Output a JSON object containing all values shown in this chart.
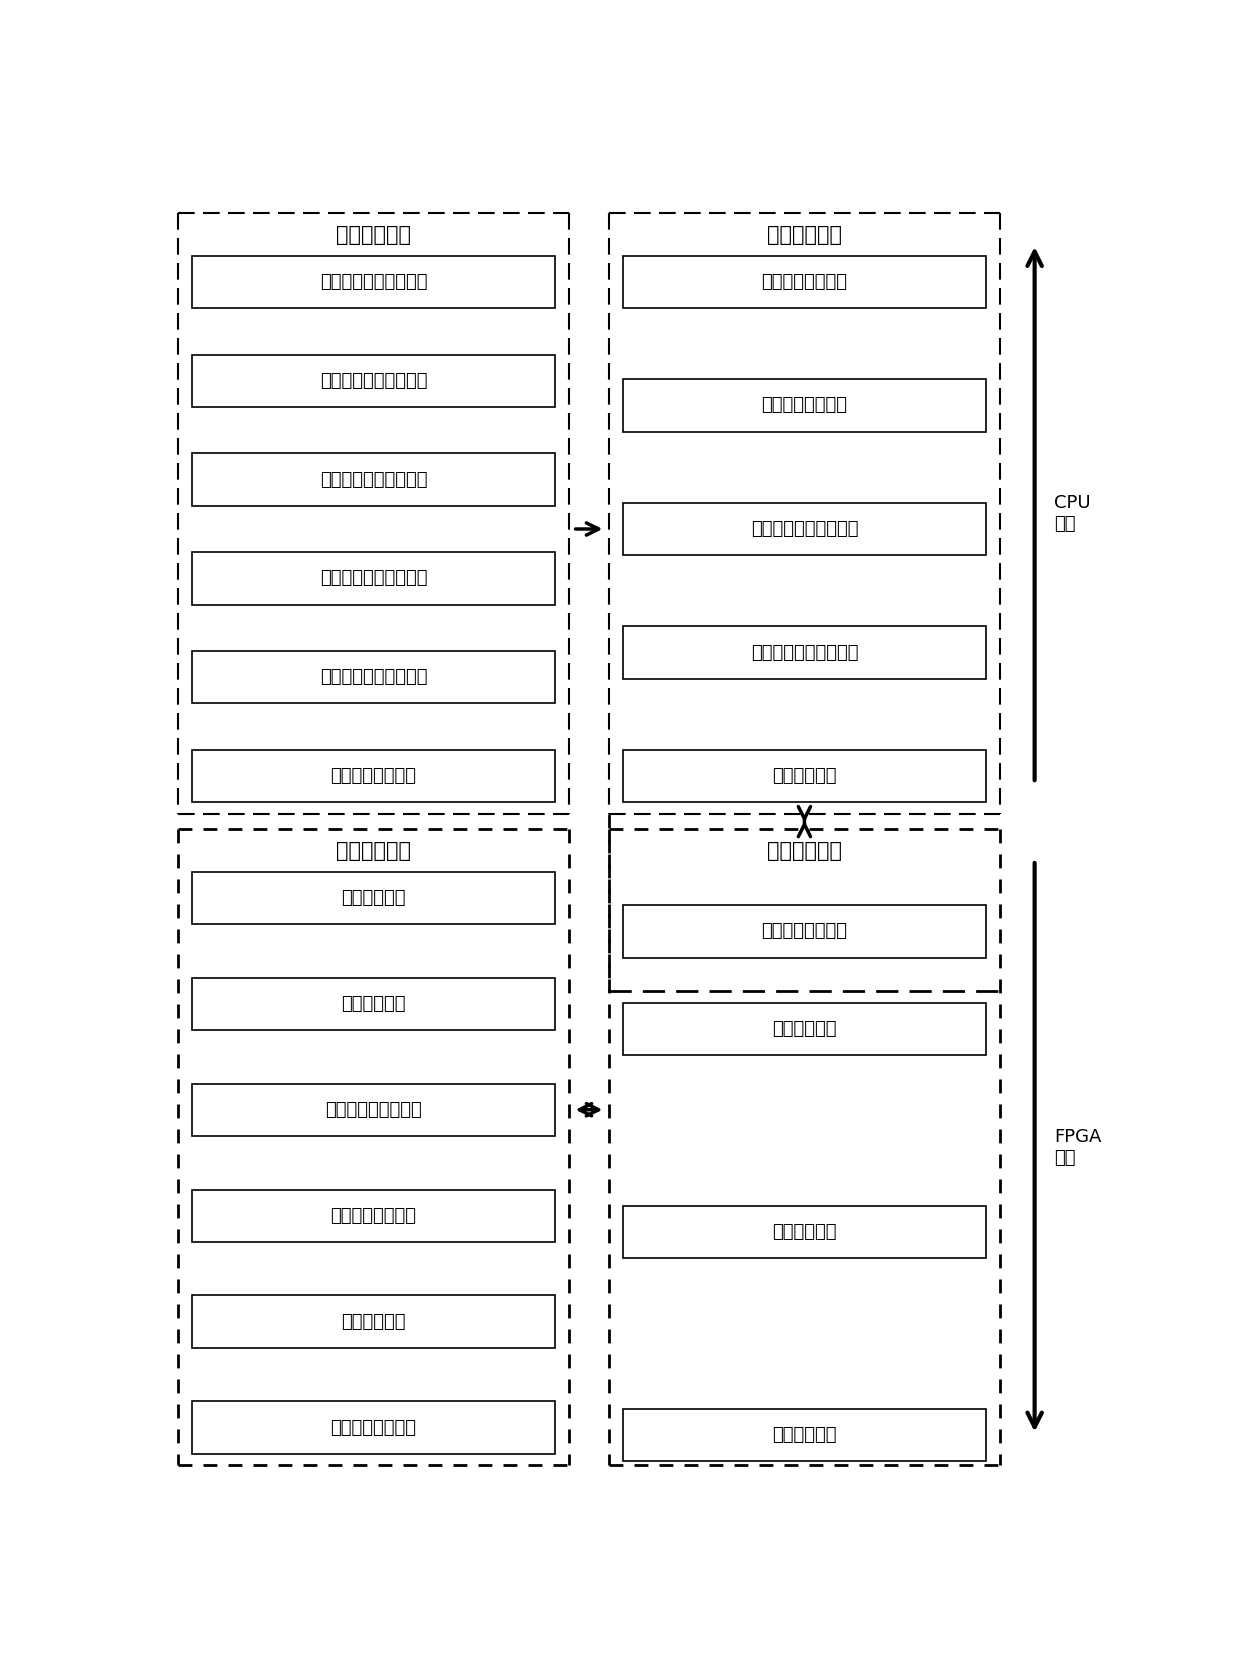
{
  "left_top_title": "初始配置部分",
  "left_top_boxes": [
    "台链（模式）选择模块",
    "用户初始位置设置模块",
    "用户运动状态设置模块",
    "时差模式参数设置模块",
    "包周差、功率设置模块",
    "信号环境设置模块"
  ],
  "right_top_title": "参数计算部分",
  "right_top_boxes": [
    "信号时差计算模块",
    "位置更新计算模块",
    "相对运动状态计算模块",
    "干扰噪声参数计算模块",
    "中断响应模块"
  ],
  "left_bottom_title": "信号生成部分",
  "left_bottom_boxes": [
    "芯片管理模块",
    "中断产生模块",
    "单脉冲信号生成模块",
    "相位编码控制模块",
    "时序控制模块",
    "干扰噪声生成模块"
  ],
  "right_bottom_title": "数据通信部分",
  "right_bottom_cpu_boxes": [
    "参数封装下发模块"
  ],
  "right_bottom_fpga_boxes": [
    "中断传输模块",
    "参数接收模块",
    "参数解析模块"
  ],
  "cpu_label": "CPU\n部分",
  "fpga_label": "FPGA\n部分",
  "bg_color": "#ffffff",
  "text_color": "#000000",
  "font_size": 13,
  "title_font_size": 14
}
